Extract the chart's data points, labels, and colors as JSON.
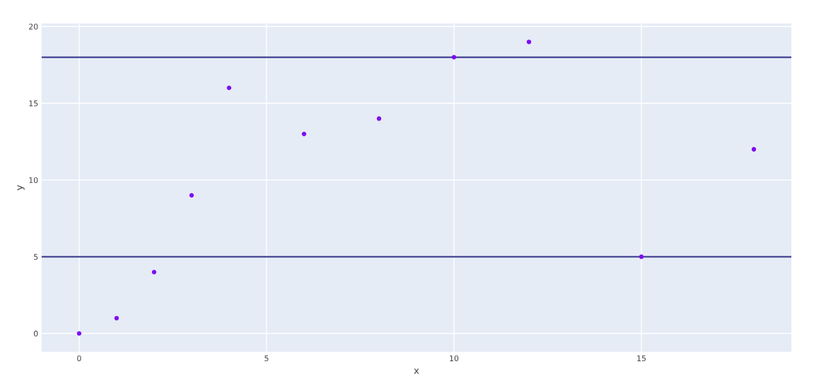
{
  "chart_data": {
    "type": "scatter",
    "xlabel": "x",
    "ylabel": "y",
    "x": [
      0,
      1,
      2,
      3,
      4,
      6,
      8,
      10,
      12,
      15,
      18
    ],
    "values": [
      0,
      1,
      4,
      9,
      16,
      13,
      14,
      18,
      19,
      5,
      12
    ],
    "color": "#7f0df2",
    "marker": "circle",
    "xlim": [
      -1,
      19
    ],
    "ylim": [
      -1.2,
      20.2
    ],
    "xticks": [
      0,
      5,
      10,
      15
    ],
    "yticks": [
      0,
      5,
      10,
      15,
      20
    ],
    "ref_lines": [
      {
        "axis": "y",
        "value": 18,
        "color": "#3f3f8f"
      },
      {
        "axis": "y",
        "value": 5,
        "color": "#3f3f8f"
      }
    ],
    "grid": true
  }
}
